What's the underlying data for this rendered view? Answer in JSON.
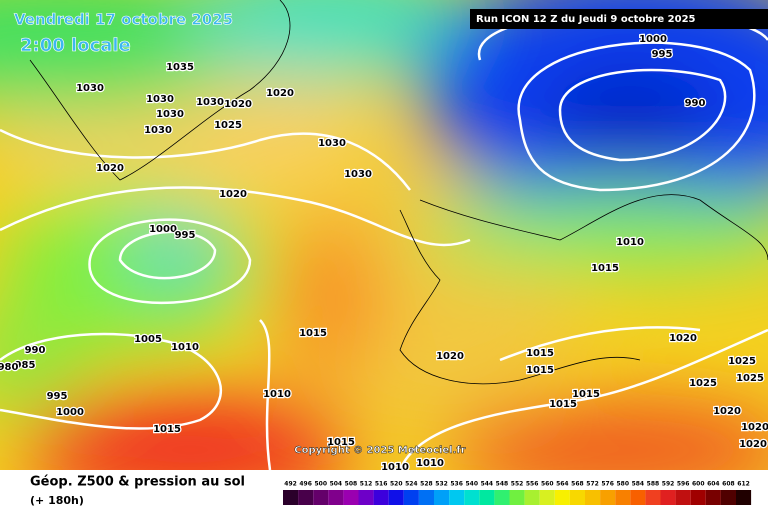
{
  "header": {
    "title": "Vendredi 17 octobre 2025",
    "subtitle": "2:00 locale",
    "run": "Run ICON 12 Z du Jeudi 9 octobre 2025"
  },
  "isobar_labels": [
    "1030",
    "1035",
    "1030",
    "1030",
    "1030",
    "1020",
    "1030",
    "1025",
    "1020",
    "1020",
    "1030",
    "1030",
    "1020",
    "1000",
    "995",
    "1000",
    "995",
    "990",
    "1010",
    "1015",
    "1015",
    "1005",
    "1010",
    "990",
    "985",
    "980",
    "995",
    "1000",
    "1010",
    "1020",
    "1015",
    "1015",
    "1015",
    "1015",
    "1020",
    "1025",
    "1025",
    "1025",
    "1020",
    "1020",
    "1020",
    "1015",
    "1015",
    "1010",
    "1010"
  ],
  "copyright": "Copyright © 2025 Meteociel.fr",
  "footer": {
    "title": "Géop. Z500 & pression au sol",
    "lead": "(+ 180h)"
  },
  "scale": {
    "labels": [
      492,
      496,
      500,
      504,
      508,
      512,
      516,
      520,
      524,
      528,
      532,
      536,
      540,
      544,
      548,
      552,
      556,
      560,
      564,
      568,
      572,
      576,
      580,
      584,
      588,
      592,
      596,
      600,
      604,
      608,
      612
    ],
    "colors": [
      "#2a002a",
      "#48004a",
      "#64006a",
      "#80008c",
      "#9a00b0",
      "#6e00c8",
      "#3c00dc",
      "#1010e8",
      "#0040f0",
      "#0070f4",
      "#00a0f8",
      "#00c8f0",
      "#00e0d0",
      "#00e8a0",
      "#30f070",
      "#70f040",
      "#a8f030",
      "#d8f020",
      "#f8f000",
      "#f8d800",
      "#f8c000",
      "#f8a000",
      "#f88000",
      "#f86000",
      "#f04020",
      "#e02020",
      "#c01010",
      "#a00000",
      "#780000",
      "#500000",
      "#200000"
    ]
  }
}
